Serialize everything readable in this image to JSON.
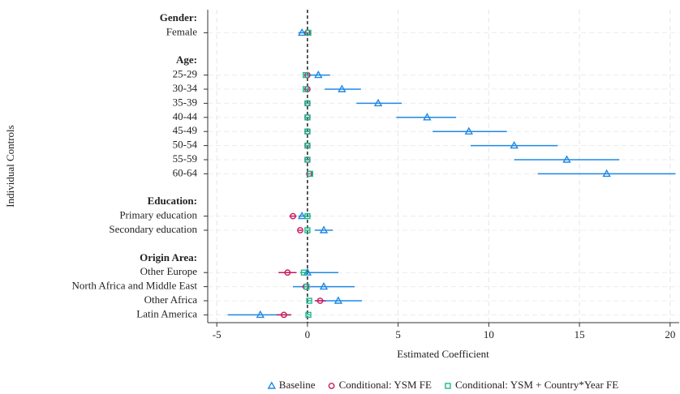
{
  "chart_data": {
    "type": "coefplot",
    "x_label": "Estimated Coefficient",
    "y_label": "Individual Controls",
    "categories": [
      "Gender:",
      "Female",
      null,
      "Age:",
      "25-29",
      "30-34",
      "35-39",
      "40-44",
      "45-49",
      "50-54",
      "55-59",
      "60-64",
      null,
      "Education:",
      "Primary education",
      "Secondary education",
      null,
      "Origin Area:",
      "Other Europe",
      "North Africa and Middle East",
      "Other Africa",
      "Latin America"
    ],
    "xlim": [
      -5.5,
      20.5
    ],
    "xticks": [
      -5,
      0,
      5,
      10,
      15,
      20
    ],
    "grid": true,
    "zero_line": true,
    "legend": "bottom",
    "series": [
      {
        "name": "Baseline",
        "color": "#1e88e5",
        "marker": "triangle",
        "values": [
          null,
          -0.3,
          null,
          null,
          0.6,
          1.9,
          3.9,
          6.6,
          8.9,
          11.4,
          14.3,
          16.5,
          null,
          null,
          -0.3,
          0.9,
          null,
          null,
          0.0,
          0.9,
          1.7,
          -2.6
        ],
        "ci_low": [
          null,
          -0.5,
          null,
          null,
          0.05,
          0.95,
          2.7,
          4.9,
          6.9,
          9.0,
          11.4,
          12.7,
          null,
          null,
          -0.5,
          0.4,
          null,
          null,
          -0.2,
          -0.8,
          0.5,
          -4.4
        ],
        "ci_high": [
          null,
          -0.1,
          null,
          null,
          1.25,
          2.95,
          5.2,
          8.2,
          11.0,
          13.8,
          17.2,
          20.3,
          null,
          null,
          -0.1,
          1.4,
          null,
          null,
          1.7,
          2.6,
          3.0,
          -0.9
        ]
      },
      {
        "name": "Conditional: YSM FE",
        "color": "#c8185e",
        "marker": "circle",
        "values": [
          null,
          0.0,
          null,
          null,
          0.0,
          0.0,
          0.0,
          0.0,
          0.0,
          0.0,
          0.0,
          0.1,
          null,
          null,
          -0.8,
          -0.4,
          null,
          null,
          -1.1,
          -0.1,
          0.7,
          -1.3
        ],
        "ci_low": [
          null,
          -0.1,
          null,
          null,
          -0.1,
          -0.1,
          -0.1,
          -0.1,
          -0.1,
          -0.1,
          -0.1,
          0.0,
          null,
          null,
          -1.0,
          -0.5,
          null,
          null,
          -1.6,
          -0.3,
          0.4,
          -1.7
        ],
        "ci_high": [
          null,
          0.1,
          null,
          null,
          0.1,
          0.1,
          0.1,
          0.1,
          0.1,
          0.1,
          0.1,
          0.2,
          null,
          null,
          -0.6,
          -0.3,
          null,
          null,
          -0.6,
          0.1,
          1.0,
          -0.9
        ]
      },
      {
        "name": "Conditional: YSM + Country*Year FE",
        "color": "#1cb88e",
        "marker": "square",
        "values": [
          null,
          0.05,
          null,
          null,
          -0.1,
          -0.1,
          0.0,
          0.0,
          0.0,
          0.0,
          0.0,
          0.15,
          null,
          null,
          0.0,
          0.0,
          null,
          null,
          -0.2,
          -0.05,
          0.1,
          0.05
        ],
        "ci_low": [
          null,
          -0.05,
          null,
          null,
          -0.2,
          -0.2,
          -0.1,
          -0.1,
          -0.1,
          -0.1,
          -0.1,
          0.05,
          null,
          null,
          -0.2,
          -0.1,
          null,
          null,
          -0.4,
          -0.2,
          0.0,
          -0.05
        ],
        "ci_high": [
          null,
          0.15,
          null,
          null,
          0.0,
          0.0,
          0.1,
          0.1,
          0.1,
          0.1,
          0.1,
          0.25,
          null,
          null,
          0.2,
          0.1,
          null,
          null,
          0.0,
          0.1,
          0.2,
          0.15
        ]
      }
    ]
  }
}
